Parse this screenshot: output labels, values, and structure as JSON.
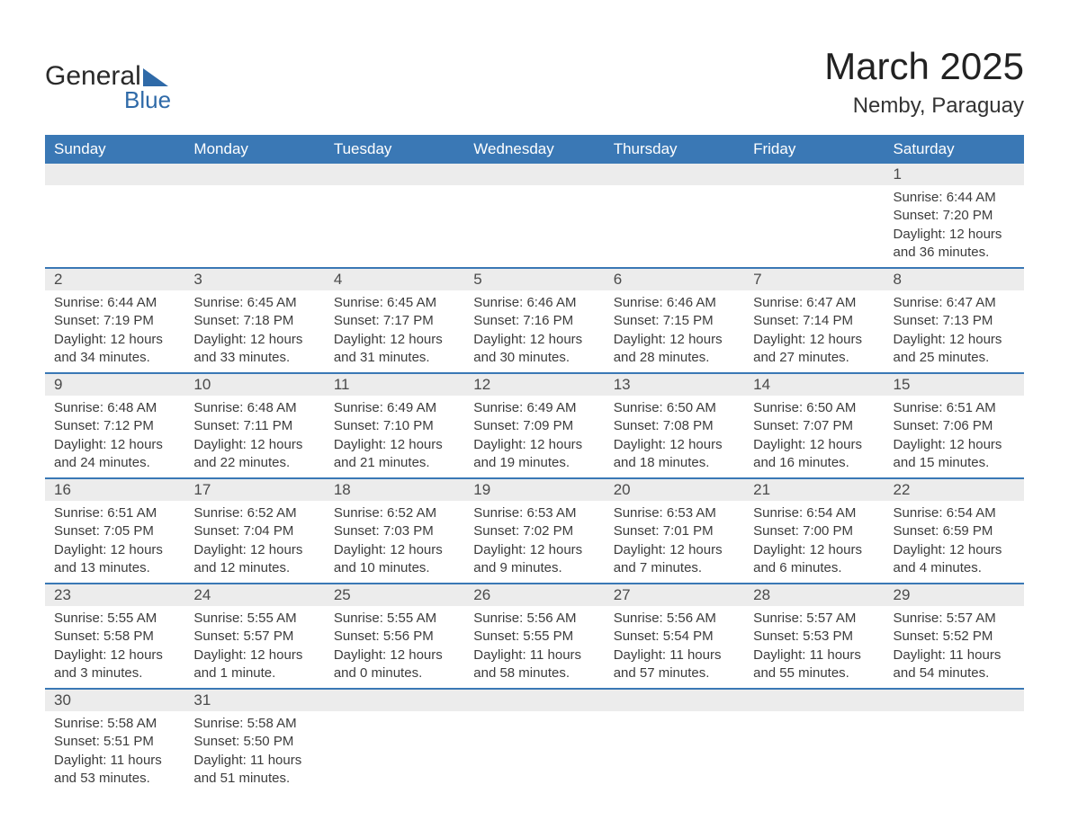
{
  "logo": {
    "text_top": "General",
    "text_bottom": "Blue"
  },
  "title": "March 2025",
  "location": "Nemby, Paraguay",
  "colors": {
    "header_bg": "#3a78b5",
    "header_text": "#ffffff",
    "daynum_bg": "#ececec",
    "row_border": "#3a78b5",
    "body_text": "#3c3c3c",
    "logo_accent": "#2f6aa8"
  },
  "days_of_week": [
    "Sunday",
    "Monday",
    "Tuesday",
    "Wednesday",
    "Thursday",
    "Friday",
    "Saturday"
  ],
  "weeks": [
    [
      null,
      null,
      null,
      null,
      null,
      null,
      {
        "n": "1",
        "sr": "Sunrise: 6:44 AM",
        "ss": "Sunset: 7:20 PM",
        "d1": "Daylight: 12 hours",
        "d2": "and 36 minutes."
      }
    ],
    [
      {
        "n": "2",
        "sr": "Sunrise: 6:44 AM",
        "ss": "Sunset: 7:19 PM",
        "d1": "Daylight: 12 hours",
        "d2": "and 34 minutes."
      },
      {
        "n": "3",
        "sr": "Sunrise: 6:45 AM",
        "ss": "Sunset: 7:18 PM",
        "d1": "Daylight: 12 hours",
        "d2": "and 33 minutes."
      },
      {
        "n": "4",
        "sr": "Sunrise: 6:45 AM",
        "ss": "Sunset: 7:17 PM",
        "d1": "Daylight: 12 hours",
        "d2": "and 31 minutes."
      },
      {
        "n": "5",
        "sr": "Sunrise: 6:46 AM",
        "ss": "Sunset: 7:16 PM",
        "d1": "Daylight: 12 hours",
        "d2": "and 30 minutes."
      },
      {
        "n": "6",
        "sr": "Sunrise: 6:46 AM",
        "ss": "Sunset: 7:15 PM",
        "d1": "Daylight: 12 hours",
        "d2": "and 28 minutes."
      },
      {
        "n": "7",
        "sr": "Sunrise: 6:47 AM",
        "ss": "Sunset: 7:14 PM",
        "d1": "Daylight: 12 hours",
        "d2": "and 27 minutes."
      },
      {
        "n": "8",
        "sr": "Sunrise: 6:47 AM",
        "ss": "Sunset: 7:13 PM",
        "d1": "Daylight: 12 hours",
        "d2": "and 25 minutes."
      }
    ],
    [
      {
        "n": "9",
        "sr": "Sunrise: 6:48 AM",
        "ss": "Sunset: 7:12 PM",
        "d1": "Daylight: 12 hours",
        "d2": "and 24 minutes."
      },
      {
        "n": "10",
        "sr": "Sunrise: 6:48 AM",
        "ss": "Sunset: 7:11 PM",
        "d1": "Daylight: 12 hours",
        "d2": "and 22 minutes."
      },
      {
        "n": "11",
        "sr": "Sunrise: 6:49 AM",
        "ss": "Sunset: 7:10 PM",
        "d1": "Daylight: 12 hours",
        "d2": "and 21 minutes."
      },
      {
        "n": "12",
        "sr": "Sunrise: 6:49 AM",
        "ss": "Sunset: 7:09 PM",
        "d1": "Daylight: 12 hours",
        "d2": "and 19 minutes."
      },
      {
        "n": "13",
        "sr": "Sunrise: 6:50 AM",
        "ss": "Sunset: 7:08 PM",
        "d1": "Daylight: 12 hours",
        "d2": "and 18 minutes."
      },
      {
        "n": "14",
        "sr": "Sunrise: 6:50 AM",
        "ss": "Sunset: 7:07 PM",
        "d1": "Daylight: 12 hours",
        "d2": "and 16 minutes."
      },
      {
        "n": "15",
        "sr": "Sunrise: 6:51 AM",
        "ss": "Sunset: 7:06 PM",
        "d1": "Daylight: 12 hours",
        "d2": "and 15 minutes."
      }
    ],
    [
      {
        "n": "16",
        "sr": "Sunrise: 6:51 AM",
        "ss": "Sunset: 7:05 PM",
        "d1": "Daylight: 12 hours",
        "d2": "and 13 minutes."
      },
      {
        "n": "17",
        "sr": "Sunrise: 6:52 AM",
        "ss": "Sunset: 7:04 PM",
        "d1": "Daylight: 12 hours",
        "d2": "and 12 minutes."
      },
      {
        "n": "18",
        "sr": "Sunrise: 6:52 AM",
        "ss": "Sunset: 7:03 PM",
        "d1": "Daylight: 12 hours",
        "d2": "and 10 minutes."
      },
      {
        "n": "19",
        "sr": "Sunrise: 6:53 AM",
        "ss": "Sunset: 7:02 PM",
        "d1": "Daylight: 12 hours",
        "d2": "and 9 minutes."
      },
      {
        "n": "20",
        "sr": "Sunrise: 6:53 AM",
        "ss": "Sunset: 7:01 PM",
        "d1": "Daylight: 12 hours",
        "d2": "and 7 minutes."
      },
      {
        "n": "21",
        "sr": "Sunrise: 6:54 AM",
        "ss": "Sunset: 7:00 PM",
        "d1": "Daylight: 12 hours",
        "d2": "and 6 minutes."
      },
      {
        "n": "22",
        "sr": "Sunrise: 6:54 AM",
        "ss": "Sunset: 6:59 PM",
        "d1": "Daylight: 12 hours",
        "d2": "and 4 minutes."
      }
    ],
    [
      {
        "n": "23",
        "sr": "Sunrise: 5:55 AM",
        "ss": "Sunset: 5:58 PM",
        "d1": "Daylight: 12 hours",
        "d2": "and 3 minutes."
      },
      {
        "n": "24",
        "sr": "Sunrise: 5:55 AM",
        "ss": "Sunset: 5:57 PM",
        "d1": "Daylight: 12 hours",
        "d2": "and 1 minute."
      },
      {
        "n": "25",
        "sr": "Sunrise: 5:55 AM",
        "ss": "Sunset: 5:56 PM",
        "d1": "Daylight: 12 hours",
        "d2": "and 0 minutes."
      },
      {
        "n": "26",
        "sr": "Sunrise: 5:56 AM",
        "ss": "Sunset: 5:55 PM",
        "d1": "Daylight: 11 hours",
        "d2": "and 58 minutes."
      },
      {
        "n": "27",
        "sr": "Sunrise: 5:56 AM",
        "ss": "Sunset: 5:54 PM",
        "d1": "Daylight: 11 hours",
        "d2": "and 57 minutes."
      },
      {
        "n": "28",
        "sr": "Sunrise: 5:57 AM",
        "ss": "Sunset: 5:53 PM",
        "d1": "Daylight: 11 hours",
        "d2": "and 55 minutes."
      },
      {
        "n": "29",
        "sr": "Sunrise: 5:57 AM",
        "ss": "Sunset: 5:52 PM",
        "d1": "Daylight: 11 hours",
        "d2": "and 54 minutes."
      }
    ],
    [
      {
        "n": "30",
        "sr": "Sunrise: 5:58 AM",
        "ss": "Sunset: 5:51 PM",
        "d1": "Daylight: 11 hours",
        "d2": "and 53 minutes."
      },
      {
        "n": "31",
        "sr": "Sunrise: 5:58 AM",
        "ss": "Sunset: 5:50 PM",
        "d1": "Daylight: 11 hours",
        "d2": "and 51 minutes."
      },
      null,
      null,
      null,
      null,
      null
    ]
  ]
}
